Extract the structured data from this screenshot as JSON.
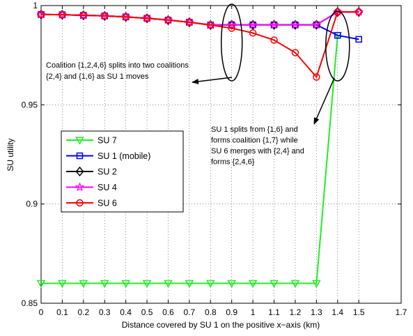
{
  "chart_data": {
    "type": "line",
    "title": "",
    "xlabel": "Distance covered by SU 1 on the positive x−axis (km)",
    "ylabel": "SU utility",
    "xlim": [
      0,
      1.7
    ],
    "ylim": [
      0.85,
      1.0
    ],
    "x_ticks": [
      0,
      0.1,
      0.2,
      0.3,
      0.4,
      0.5,
      0.6,
      0.7,
      0.8,
      0.9,
      1,
      1.1,
      1.2,
      1.3,
      1.4,
      1.5,
      1.7
    ],
    "x_tick_labels": [
      "0",
      "0.1",
      "0.2",
      "0.3",
      "0.4",
      "0.5",
      "0.6",
      "0.7",
      "0.8",
      "0.9",
      "1",
      "1.1",
      "1.2",
      "1.3",
      "1.4",
      "1.5",
      "1.7"
    ],
    "y_ticks": [
      0.85,
      0.9,
      0.95,
      1.0
    ],
    "y_tick_labels": [
      "0.85",
      "0.9",
      "0.95",
      "1"
    ],
    "grid": true,
    "legend_position": "middle-left",
    "x": [
      0,
      0.1,
      0.2,
      0.3,
      0.4,
      0.5,
      0.6,
      0.7,
      0.8,
      0.9,
      1.0,
      1.1,
      1.2,
      1.3,
      1.4,
      1.5
    ],
    "series": [
      {
        "name": "SU 7",
        "color": "#22ee22",
        "marker": "triangle-down",
        "values": [
          0.86,
          0.86,
          0.86,
          0.86,
          0.86,
          0.86,
          0.86,
          0.86,
          0.86,
          0.86,
          0.86,
          0.86,
          0.86,
          0.86,
          0.985,
          null
        ]
      },
      {
        "name": "SU 1 (mobile)",
        "color": "#0000ff",
        "marker": "square",
        "values": [
          0.9955,
          0.9954,
          0.9951,
          0.9948,
          0.9943,
          0.9936,
          0.9927,
          0.9916,
          0.9902,
          0.9903,
          0.9903,
          0.9903,
          0.9903,
          0.9903,
          0.985,
          0.983
        ]
      },
      {
        "name": "SU 2",
        "color": "#000000",
        "marker": "diamond",
        "values": [
          0.9955,
          0.9954,
          0.9951,
          0.9948,
          0.9943,
          0.9936,
          0.9927,
          0.9916,
          0.9902,
          0.9903,
          0.9903,
          0.9903,
          0.9903,
          0.9903,
          0.9968,
          0.9968
        ]
      },
      {
        "name": "SU 4",
        "color": "#ff00ff",
        "marker": "star",
        "values": [
          0.9955,
          0.9954,
          0.9951,
          0.9948,
          0.9943,
          0.9936,
          0.9927,
          0.9916,
          0.9902,
          0.9903,
          0.9903,
          0.9903,
          0.9903,
          0.9903,
          0.9968,
          0.9968
        ]
      },
      {
        "name": "SU 6",
        "color": "#ff0000",
        "marker": "circle",
        "values": [
          0.9955,
          0.9954,
          0.9951,
          0.9948,
          0.9943,
          0.9936,
          0.9927,
          0.9916,
          0.9902,
          0.9886,
          0.9862,
          0.9826,
          0.9763,
          0.964,
          0.9968,
          0.9968
        ]
      }
    ],
    "annotations": [
      {
        "lines": [
          "Coalition {1,2,4,6} splits into two coalitions",
          "{2,4} and {1,6} as SU 1 moves"
        ]
      },
      {
        "lines": [
          "SU 1 splits from {1,6} and",
          "forms coalition {1,7} while",
          "SU 6 merges with {2,4} and",
          "forms {2,4,6}"
        ]
      }
    ]
  }
}
